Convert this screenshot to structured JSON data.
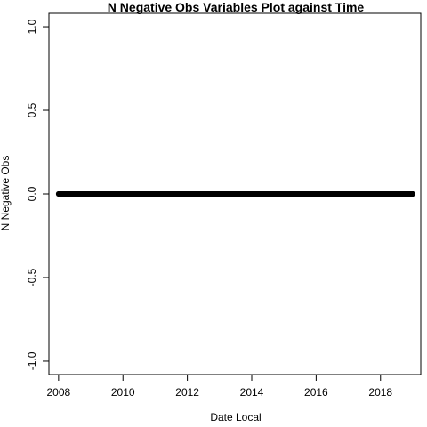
{
  "chart_data": {
    "type": "scatter",
    "title": "N Negative Obs Variables Plot against Time",
    "xlabel": "Date Local",
    "ylabel": "N Negative Obs",
    "xlim": [
      2007.7,
      2019.25
    ],
    "ylim": [
      -1.08,
      1.08
    ],
    "x_ticks": [
      2008,
      2010,
      2012,
      2014,
      2016,
      2018
    ],
    "x_tick_labels": [
      "2008",
      "2010",
      "2012",
      "2014",
      "2016",
      "2018"
    ],
    "y_ticks": [
      -1.0,
      -0.5,
      0.0,
      0.5,
      1.0
    ],
    "y_tick_labels": [
      "-1.0",
      "-0.5",
      "0.0",
      "0.5",
      "1.0"
    ],
    "grid": false,
    "marker": "filled-circle",
    "marker_color": "#000000",
    "series": [
      {
        "x_range": [
          "2008-01-01",
          "2018-12-31"
        ],
        "y": 0,
        "sampling": "daily"
      }
    ]
  }
}
